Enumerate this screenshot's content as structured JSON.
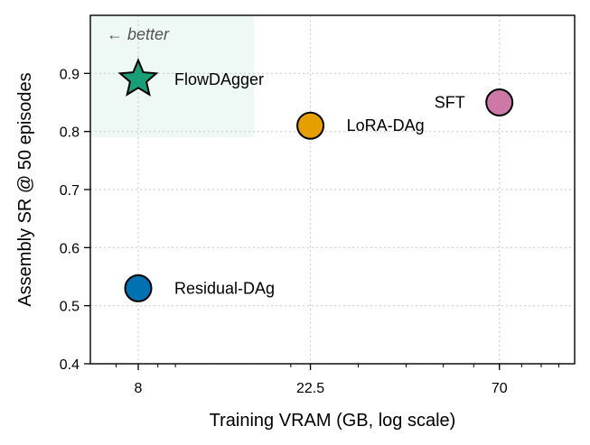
{
  "chart_data": {
    "type": "scatter",
    "xlabel": "Training VRAM (GB, log scale)",
    "ylabel": "Assembly SR @ 50 episodes",
    "xscale": "log",
    "xlim": [
      6,
      110
    ],
    "ylim": [
      0.4,
      1.0
    ],
    "xticks": [
      8,
      22.5,
      70
    ],
    "xtick_labels": [
      "8",
      "22.5",
      "70"
    ],
    "yticks": [
      0.4,
      0.5,
      0.6,
      0.7,
      0.8,
      0.9
    ],
    "ytick_labels": [
      "0.4",
      "0.5",
      "0.6",
      "0.7",
      "0.8",
      "0.9"
    ],
    "grid": true,
    "annotation": "← better",
    "better_region": {
      "x": [
        6,
        16
      ],
      "y": [
        0.79,
        1.0
      ],
      "color": "#d9f0e6"
    },
    "points": [
      {
        "label": "FlowDAgger",
        "x": 8,
        "y": 0.89,
        "marker": "star",
        "color": "#1a9e77"
      },
      {
        "label": "LoRA-DAg",
        "x": 22.5,
        "y": 0.81,
        "marker": "circle",
        "color": "#e69f00"
      },
      {
        "label": "SFT",
        "x": 70,
        "y": 0.85,
        "marker": "circle",
        "color": "#cc79a7"
      },
      {
        "label": "Residual-DAg",
        "x": 8,
        "y": 0.53,
        "marker": "circle",
        "color": "#0072b2"
      }
    ]
  }
}
